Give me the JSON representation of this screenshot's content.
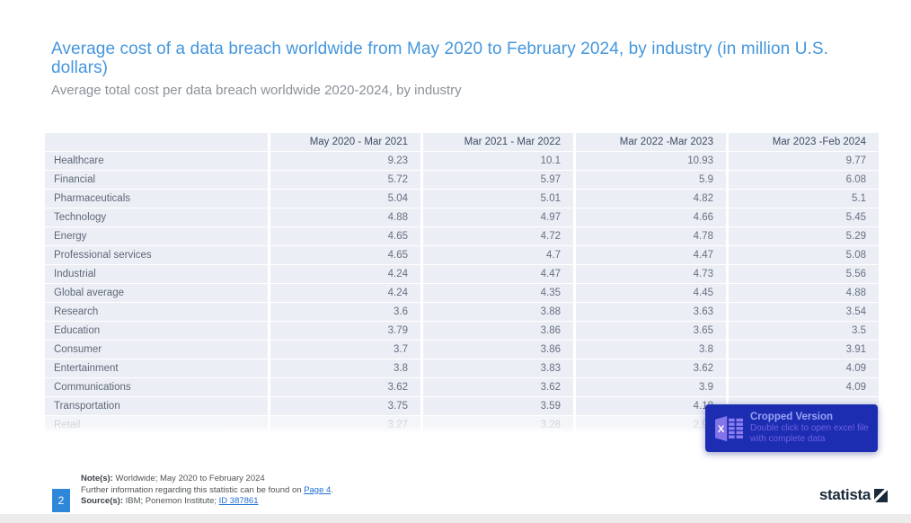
{
  "title": "Average cost of a data breach worldwide from May 2020 to February 2024, by industry (in million U.S. dollars)",
  "subtitle": "Average total cost per data breach worldwide 2020-2024, by industry",
  "chart_data": {
    "type": "table",
    "title": "Average cost of a data breach worldwide from May 2020 to February 2024, by industry (in million U.S. dollars)",
    "columns": [
      "",
      "May 2020 - Mar 2021",
      "Mar 2021 - Mar 2022",
      "Mar 2022 -Mar 2023",
      "Mar 2023 -Feb 2024"
    ],
    "rows": [
      {
        "label": "Healthcare",
        "values": [
          "9.23",
          "10.1",
          "10.93",
          "9.77"
        ],
        "muted": false
      },
      {
        "label": "Financial",
        "values": [
          "5.72",
          "5.97",
          "5.9",
          "6.08"
        ],
        "muted": false
      },
      {
        "label": "Pharmaceuticals",
        "values": [
          "5.04",
          "5.01",
          "4.82",
          "5.1"
        ],
        "muted": false
      },
      {
        "label": "Technology",
        "values": [
          "4.88",
          "4.97",
          "4.66",
          "5.45"
        ],
        "muted": false
      },
      {
        "label": "Energy",
        "values": [
          "4.65",
          "4.72",
          "4.78",
          "5.29"
        ],
        "muted": false
      },
      {
        "label": "Professional services",
        "values": [
          "4.65",
          "4.7",
          "4.47",
          "5.08"
        ],
        "muted": false
      },
      {
        "label": "Industrial",
        "values": [
          "4.24",
          "4.47",
          "4.73",
          "5.56"
        ],
        "muted": false
      },
      {
        "label": "Global average",
        "values": [
          "4.24",
          "4.35",
          "4.45",
          "4.88"
        ],
        "muted": false
      },
      {
        "label": "Research",
        "values": [
          "3.6",
          "3.88",
          "3.63",
          "3.54"
        ],
        "muted": false
      },
      {
        "label": "Education",
        "values": [
          "3.79",
          "3.86",
          "3.65",
          "3.5"
        ],
        "muted": false
      },
      {
        "label": "Consumer",
        "values": [
          "3.7",
          "3.86",
          "3.8",
          "3.91"
        ],
        "muted": false
      },
      {
        "label": "Entertainment",
        "values": [
          "3.8",
          "3.83",
          "3.62",
          "4.09"
        ],
        "muted": false
      },
      {
        "label": "Communications",
        "values": [
          "3.62",
          "3.62",
          "3.9",
          "4.09"
        ],
        "muted": false
      },
      {
        "label": "Transportation",
        "values": [
          "3.75",
          "3.59",
          "4.18",
          ""
        ],
        "muted": false
      },
      {
        "label": "Retail",
        "values": [
          "3.27",
          "3.28",
          "2.96",
          ""
        ],
        "muted": true
      }
    ]
  },
  "overlay": {
    "title": "Cropped Version",
    "body": "Double click to open excel file with complete data",
    "icon": "excel-icon"
  },
  "footer": {
    "page_number": "2",
    "note_label": "Note(s):",
    "note_text": " Worldwide; May 2020 to February 2024",
    "further_text": "Further information regarding this statistic can be found on ",
    "further_link": "Page 4",
    "further_suffix": ".",
    "source_label": "Source(s):",
    "source_text": " IBM; Ponemon Institute; ",
    "source_link": "ID 387861",
    "logo_text": "statista"
  },
  "colors": {
    "title_blue": "#4496dd",
    "subtitle_gray": "#8a9199",
    "cell_background": "#eceef5",
    "header_text": "#3d4c63",
    "value_text": "#667080",
    "overlay_background": "#1c2db2",
    "overlay_title_text": "#97a3f4",
    "overlay_body_text": "#6f60e2",
    "page_badge_blue": "#2e87d8",
    "link_blue": "#1f6fd6",
    "logo_navy": "#1b2a3a",
    "bottom_strip_gray": "#ececec"
  }
}
